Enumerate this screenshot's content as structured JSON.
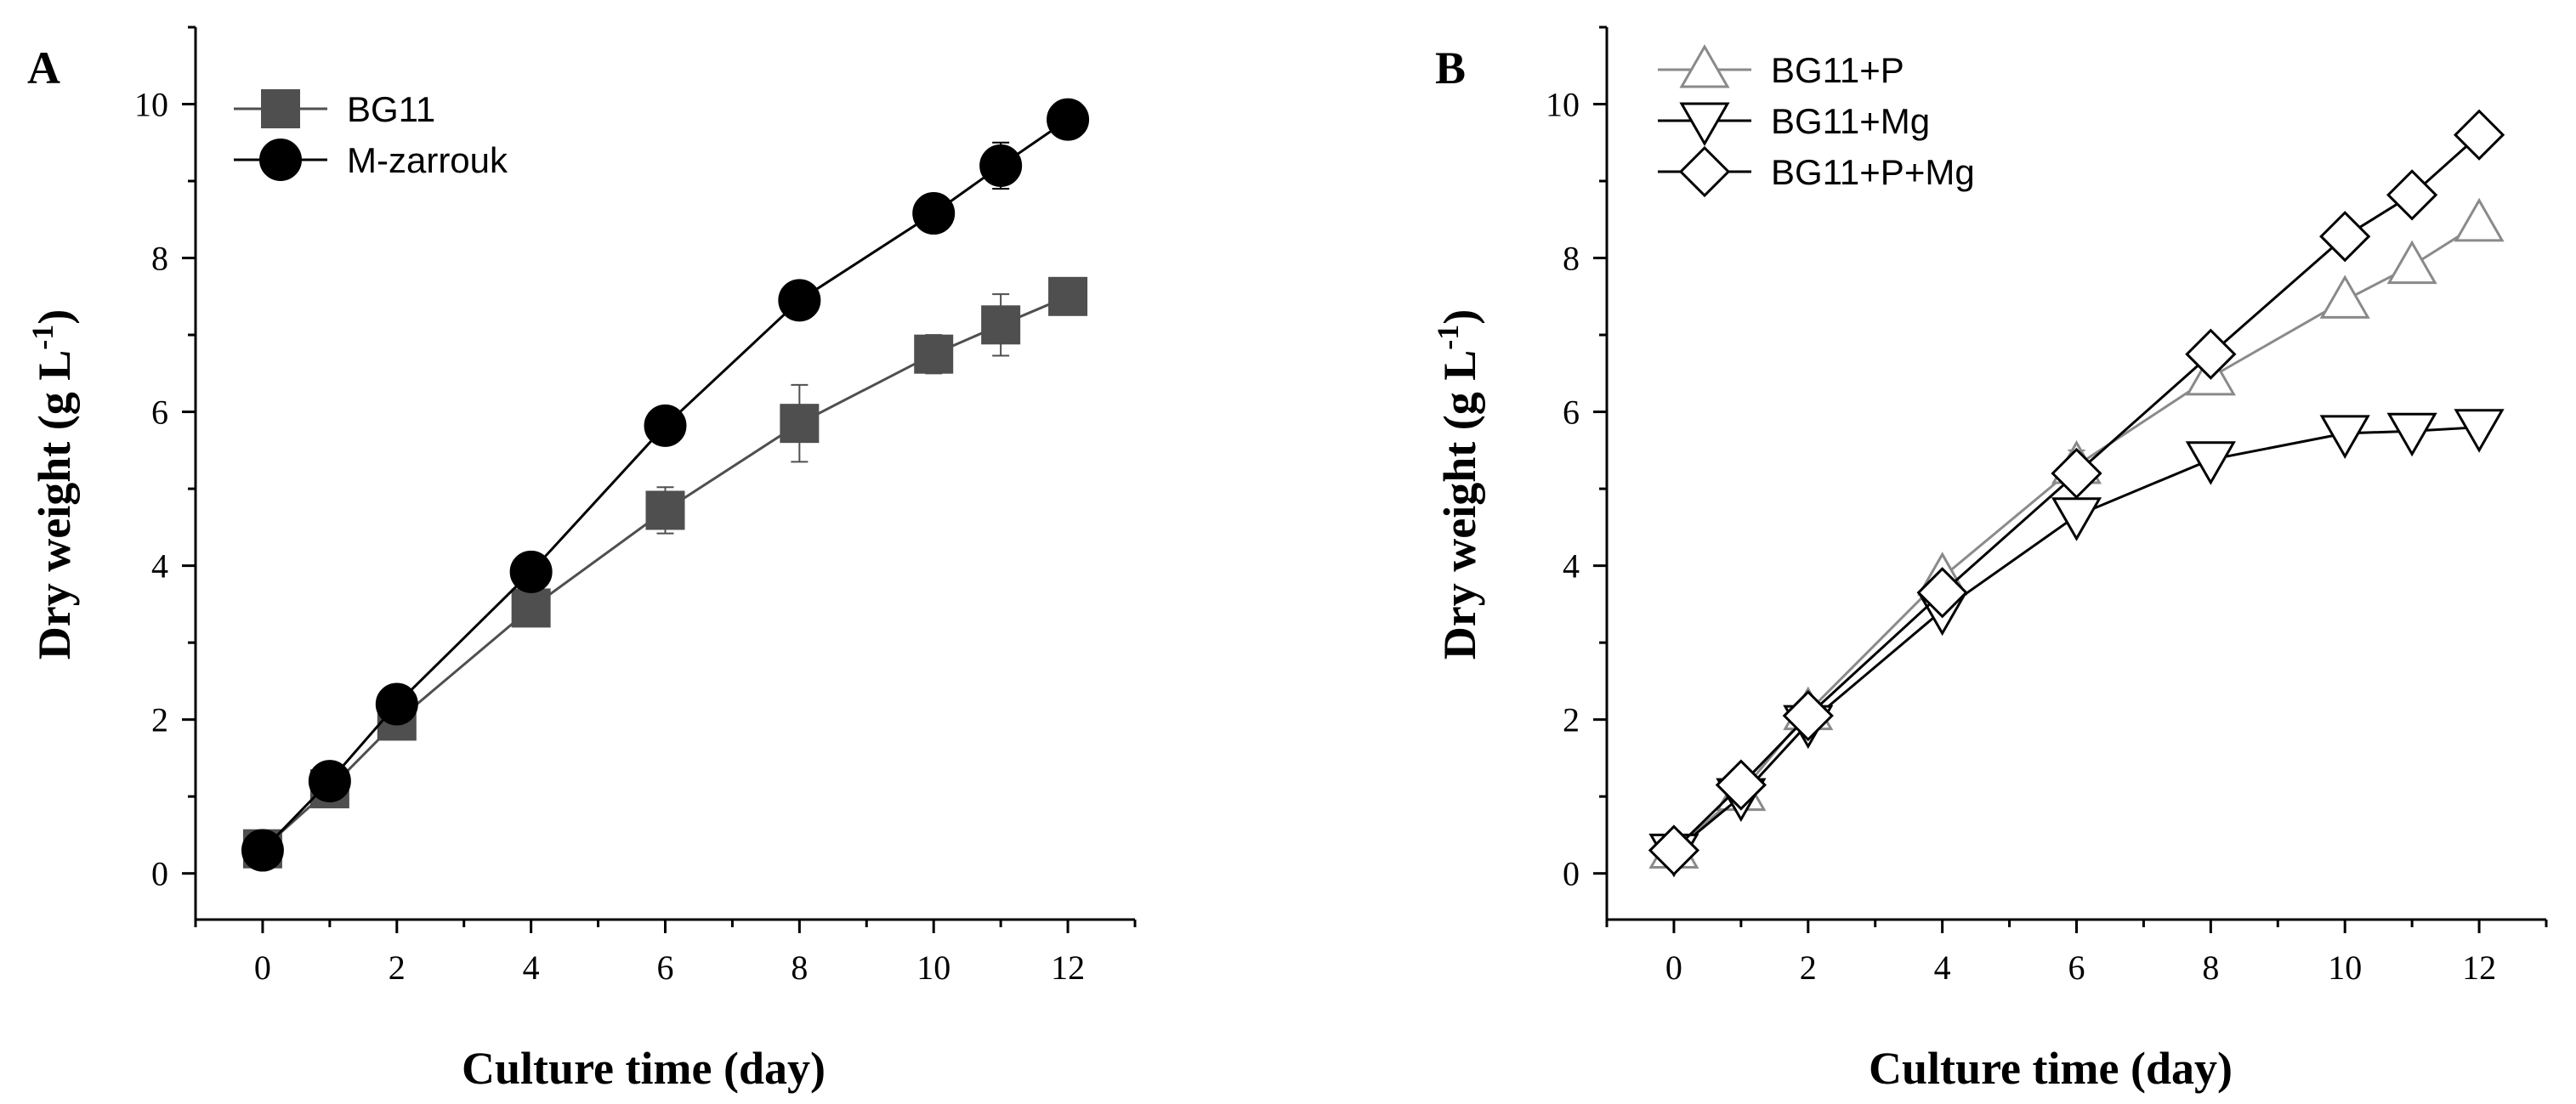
{
  "chart_data": [
    {
      "type": "line",
      "panel_label": "A",
      "xlabel": "Culture time (day)",
      "ylabel": "Dry weight (g L",
      "ylabel_sup": "-1",
      "ylabel_close": ")",
      "xlim": [
        -1,
        13
      ],
      "ylim": [
        -0.6,
        11
      ],
      "xticks": [
        0,
        2,
        4,
        6,
        8,
        10,
        12
      ],
      "yticks": [
        0,
        2,
        4,
        6,
        8,
        10
      ],
      "legend_position": "top-left",
      "series": [
        {
          "name": "BG11",
          "marker": "square",
          "color": "#4f4f4f",
          "x": [
            0,
            1,
            2,
            4,
            6,
            8,
            10,
            11,
            12
          ],
          "y": [
            0.32,
            1.1,
            1.98,
            3.45,
            4.72,
            5.85,
            6.75,
            7.13,
            7.5
          ],
          "err": [
            0.05,
            0.1,
            0.1,
            0.12,
            0.3,
            0.5,
            0.25,
            0.4,
            0.12
          ]
        },
        {
          "name": "M-zarrouk",
          "marker": "circle",
          "color": "#000000",
          "x": [
            0,
            1,
            2,
            4,
            6,
            8,
            10,
            11,
            12
          ],
          "y": [
            0.3,
            1.2,
            2.2,
            3.92,
            5.82,
            7.45,
            8.58,
            9.2,
            9.8
          ],
          "err": [
            0.05,
            0.1,
            0.1,
            0.1,
            0.1,
            0.1,
            0.1,
            0.3,
            0.1
          ]
        }
      ]
    },
    {
      "type": "line",
      "panel_label": "B",
      "xlabel": "Culture time (day)",
      "ylabel": "Dry weight (g L",
      "ylabel_sup": "-1",
      "ylabel_close": ")",
      "xlim": [
        -1,
        13
      ],
      "ylim": [
        -0.6,
        11
      ],
      "xticks": [
        0,
        2,
        4,
        6,
        8,
        10,
        12
      ],
      "yticks": [
        0,
        2,
        4,
        6,
        8,
        10
      ],
      "legend_position": "top-left",
      "series": [
        {
          "name": "BG11+P",
          "marker": "triangle-up",
          "color": "#8a8a8a",
          "x": [
            0,
            1,
            2,
            4,
            6,
            8,
            10,
            11,
            12
          ],
          "y": [
            0.3,
            1.05,
            2.1,
            3.85,
            5.3,
            6.45,
            7.45,
            7.9,
            8.45
          ],
          "err": [
            0.05,
            0.1,
            0.1,
            0.12,
            0.2,
            0.12,
            0.12,
            0.12,
            0.12
          ]
        },
        {
          "name": "BG11+Mg",
          "marker": "triangle-down",
          "color": "#000000",
          "x": [
            0,
            1,
            2,
            4,
            6,
            8,
            10,
            11,
            12
          ],
          "y": [
            0.28,
            1.0,
            1.95,
            3.42,
            4.65,
            5.38,
            5.72,
            5.75,
            5.8
          ],
          "err": [
            0.05,
            0.1,
            0.1,
            0.1,
            0.12,
            0.1,
            0.1,
            0.1,
            0.1
          ]
        },
        {
          "name": "BG11+P+Mg",
          "marker": "diamond",
          "color": "#000000",
          "x": [
            0,
            1,
            2,
            4,
            6,
            8,
            10,
            11,
            12
          ],
          "y": [
            0.3,
            1.15,
            2.05,
            3.65,
            5.2,
            6.75,
            8.28,
            8.82,
            9.6
          ],
          "err": [
            0.05,
            0.1,
            0.1,
            0.12,
            0.12,
            0.12,
            0.12,
            0.12,
            0.12
          ]
        }
      ]
    }
  ]
}
